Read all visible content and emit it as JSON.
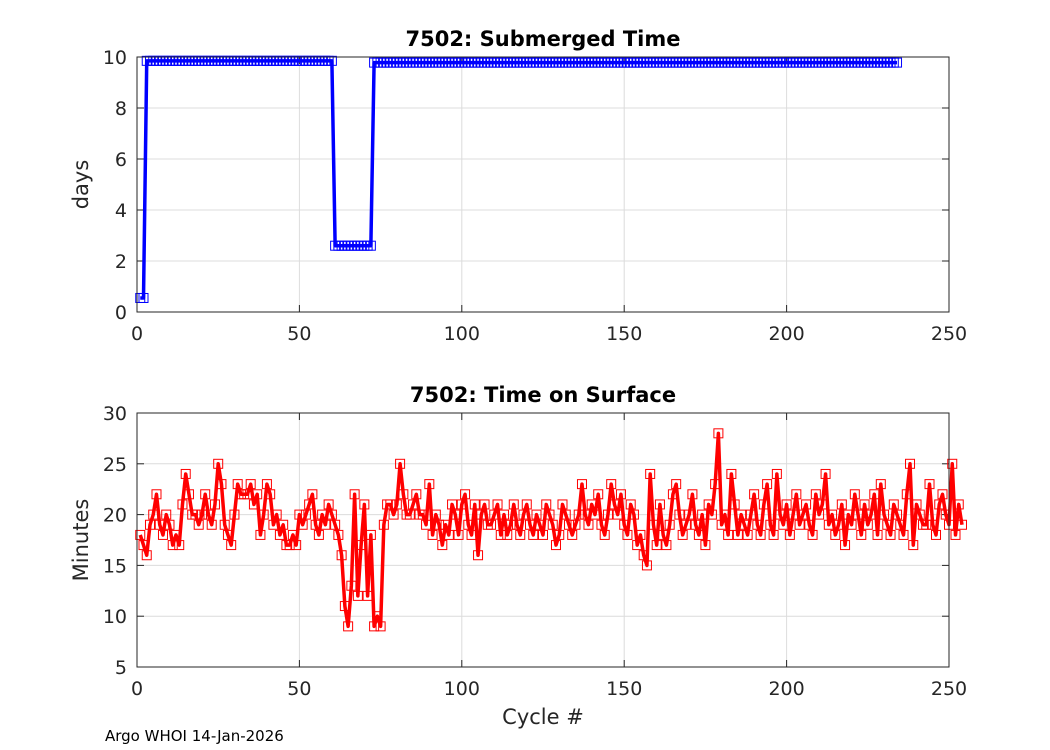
{
  "chart_data": [
    {
      "type": "line",
      "title": "7502: Submerged Time",
      "xlabel": "",
      "ylabel": "days",
      "xlim": [
        0,
        250
      ],
      "ylim": [
        0,
        10
      ],
      "xticks": [
        0,
        50,
        100,
        150,
        200,
        250
      ],
      "yticks": [
        0,
        2,
        4,
        6,
        8,
        10
      ],
      "grid": true,
      "color": "#0000ff",
      "marker": "square",
      "segments": [
        {
          "x_start": 1,
          "x_end": 2,
          "value": 0.55
        },
        {
          "x_start": 3,
          "x_end": 60,
          "value": 9.85
        },
        {
          "x_start": 61,
          "x_end": 72,
          "value": 2.6
        },
        {
          "x_start": 73,
          "x_end": 234,
          "value": 9.78
        }
      ]
    },
    {
      "type": "line",
      "title": "7502: Time on Surface",
      "xlabel": "Cycle #",
      "ylabel": "Minutes",
      "xlim": [
        0,
        250
      ],
      "ylim": [
        5,
        30
      ],
      "xticks": [
        0,
        50,
        100,
        150,
        200,
        250
      ],
      "yticks": [
        5,
        10,
        15,
        20,
        25,
        30
      ],
      "grid": true,
      "color": "#ff0000",
      "marker": "square",
      "x_start": 1,
      "values": [
        18,
        17,
        16,
        19,
        20,
        22,
        19,
        18,
        20,
        19,
        17,
        18,
        17,
        21,
        24,
        22,
        20,
        20,
        19,
        20,
        22,
        20,
        19,
        21,
        25,
        23,
        19,
        18,
        17,
        20,
        23,
        22,
        22,
        22,
        23,
        21,
        22,
        18,
        20,
        23,
        22,
        19,
        20,
        18,
        19,
        17,
        17,
        18,
        17,
        20,
        19,
        20,
        21,
        22,
        19,
        18,
        20,
        19,
        21,
        20,
        19,
        18,
        16,
        11,
        9,
        13,
        22,
        12,
        17,
        21,
        12,
        18,
        9,
        10,
        9,
        19,
        21,
        21,
        20,
        21,
        25,
        22,
        20,
        20,
        21,
        22,
        20,
        20,
        19,
        23,
        18,
        20,
        19,
        17,
        19,
        18,
        21,
        20,
        18,
        21,
        22,
        19,
        18,
        21,
        16,
        20,
        21,
        19,
        19,
        20,
        21,
        18,
        20,
        18,
        19,
        21,
        19,
        18,
        20,
        21,
        19,
        18,
        20,
        19,
        18,
        21,
        20,
        19,
        17,
        18,
        21,
        20,
        19,
        18,
        19,
        20,
        23,
        20,
        19,
        21,
        20,
        22,
        19,
        18,
        20,
        23,
        21,
        20,
        22,
        19,
        18,
        21,
        20,
        17,
        18,
        16,
        15,
        24,
        19,
        17,
        21,
        18,
        17,
        19,
        22,
        23,
        20,
        18,
        19,
        20,
        22,
        19,
        18,
        20,
        17,
        21,
        20,
        23,
        28,
        19,
        20,
        18,
        24,
        21,
        18,
        20,
        19,
        18,
        20,
        22,
        19,
        18,
        21,
        23,
        19,
        18,
        24,
        20,
        19,
        21,
        18,
        20,
        22,
        19,
        20,
        21,
        19,
        18,
        22,
        20,
        21,
        24,
        19,
        20,
        18,
        19,
        21,
        17,
        20,
        19,
        22,
        20,
        18,
        21,
        19,
        20,
        22,
        18,
        23,
        20,
        19,
        18,
        21,
        20,
        19,
        18,
        22,
        25,
        17,
        21,
        20,
        19,
        19,
        23,
        19,
        18,
        21,
        22,
        20,
        19,
        25,
        18,
        21,
        19
      ]
    }
  ],
  "footer": {
    "text": "Argo WHOI 14-Jan-2026"
  }
}
